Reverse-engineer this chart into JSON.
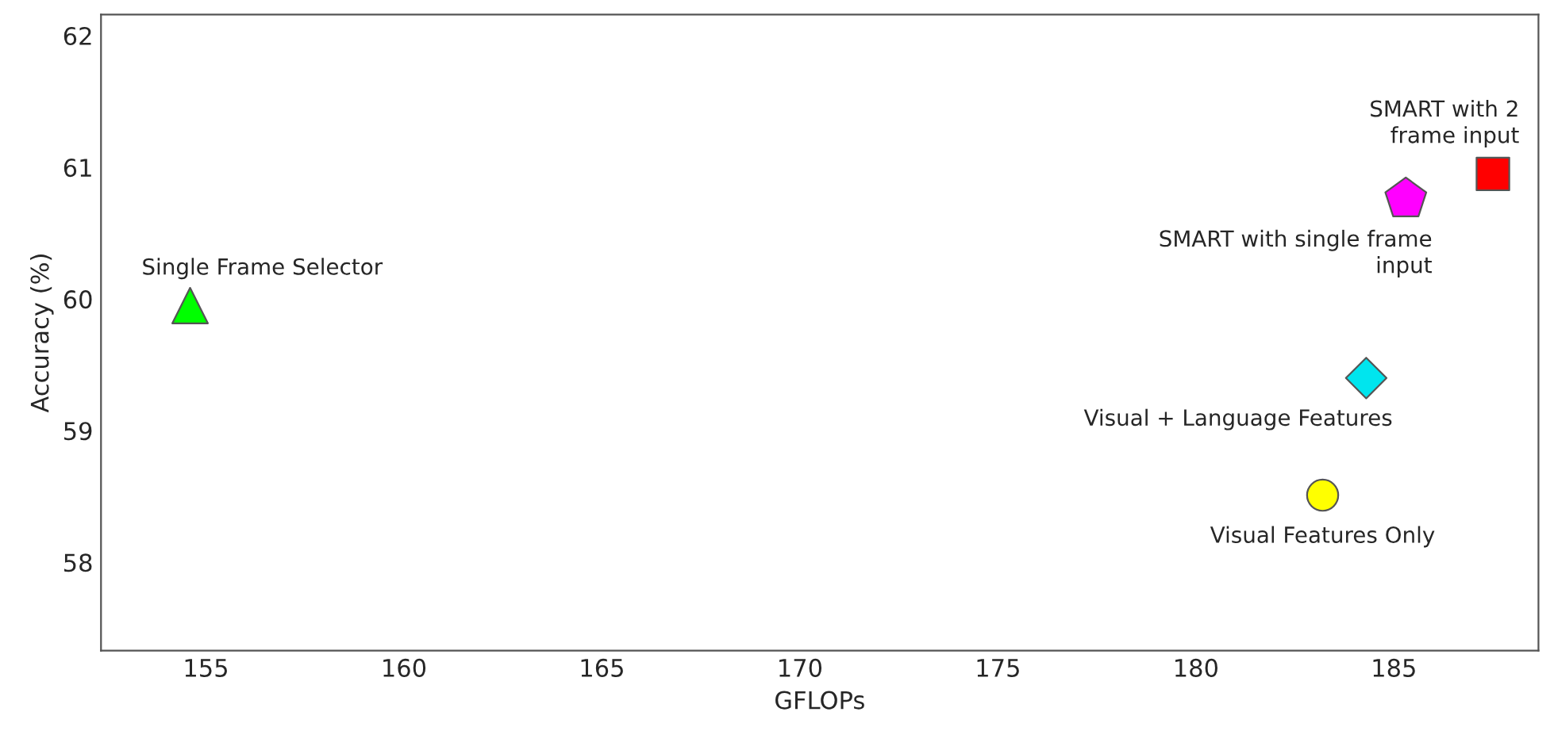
{
  "chart_data": {
    "type": "scatter",
    "xlabel": "GFLOPs",
    "ylabel": "Accuracy (%)",
    "xlim": [
      152.35,
      188.65
    ],
    "ylim": [
      57.33,
      62.16
    ],
    "xticks": [
      155,
      160,
      165,
      170,
      175,
      180,
      185
    ],
    "yticks": [
      58,
      59,
      60,
      61,
      62
    ],
    "grid": false,
    "legend": false,
    "series": [
      {
        "name": "Single Frame Selector",
        "color": "#00ff00",
        "marker": "triangle",
        "x": [
          154.6
        ],
        "values": [
          59.95
        ]
      },
      {
        "name": "SMART with single frame\ninput",
        "color": "#ff00ff",
        "x": [
          185.3
        ],
        "values": [
          60.76
        ]
      },
      {
        "name": "SMART with 2\nframe input",
        "color": "#ff0000",
        "marker": "square",
        "x": [
          187.5
        ],
        "values": [
          60.95
        ]
      },
      {
        "name": "Visual + Language Features",
        "color": "#00e5ee",
        "marker": "diamond",
        "x": [
          184.3
        ],
        "values": [
          59.4
        ]
      },
      {
        "name": "Visual Features Only",
        "color": "#ffff00",
        "marker": "circle",
        "x": [
          183.2
        ],
        "values": [
          58.51
        ]
      }
    ]
  }
}
